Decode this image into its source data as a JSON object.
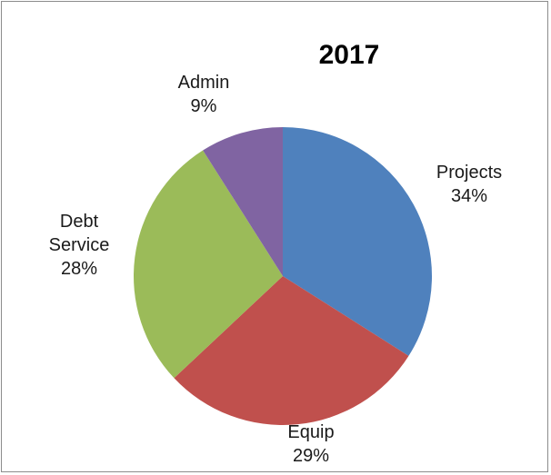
{
  "chart_data": {
    "type": "pie",
    "title": "2017",
    "categories": [
      "Projects",
      "Equip",
      "Debt Service",
      "Admin"
    ],
    "values": [
      34,
      29,
      28,
      9
    ],
    "value_labels": [
      "34%",
      "29%",
      "28%",
      "9%"
    ],
    "colors": [
      "#4f81bd",
      "#c0504d",
      "#9bbb59",
      "#8064a2"
    ],
    "legend": "none"
  }
}
